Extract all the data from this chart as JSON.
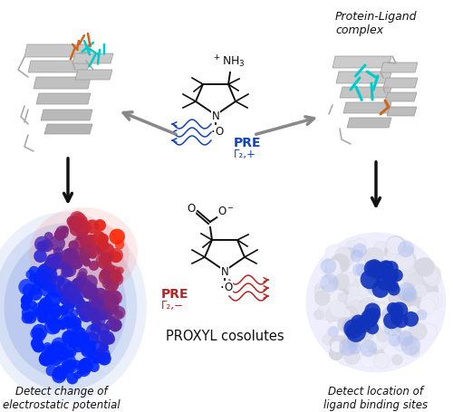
{
  "background_color": "#ffffff",
  "top_center_label": "Protein-Ligand\ncomplex",
  "bottom_left_label": "Detect change of\nelectrostatic potential",
  "bottom_right_label": "Detect location of\nligand binding sites",
  "center_bottom_label": "PROXYL cosolutes",
  "pre_blue_label": "PRE",
  "gamma_blue": "Γ₂,+",
  "pre_red_label": "PRE",
  "gamma_red": "Γ₂,−",
  "arrow_color": "#888888",
  "arrow_black": "#111111",
  "blue_color": "#1144bb",
  "red_color": "#bb2222",
  "dark_color": "#222222",
  "figw": 5.0,
  "figh": 4.56,
  "dpi": 100
}
